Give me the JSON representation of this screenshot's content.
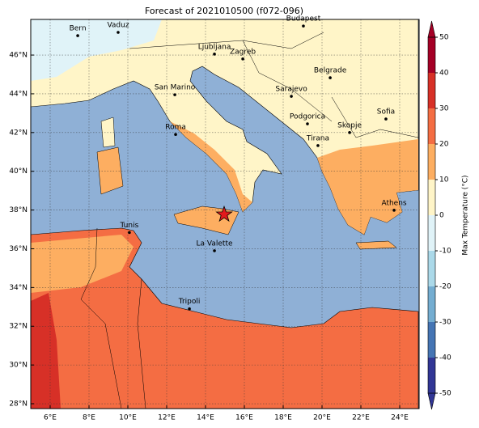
{
  "title": "Forecast of 2021010500 (f072-096)",
  "map": {
    "xlim": [
      5,
      25
    ],
    "ylim": [
      27.75,
      47.84
    ],
    "lon_ticks": [
      {
        "value": 6,
        "label": "6°E"
      },
      {
        "value": 8,
        "label": "8°E"
      },
      {
        "value": 10,
        "label": "10°E"
      },
      {
        "value": 12,
        "label": "12°E"
      },
      {
        "value": 14,
        "label": "14°E"
      },
      {
        "value": 16,
        "label": "16°E"
      },
      {
        "value": 18,
        "label": "18°E"
      },
      {
        "value": 20,
        "label": "20°E"
      },
      {
        "value": 22,
        "label": "22°E"
      },
      {
        "value": 24,
        "label": "24°E"
      }
    ],
    "lat_ticks": [
      {
        "value": 28,
        "label": "28°N"
      },
      {
        "value": 30,
        "label": "30°N"
      },
      {
        "value": 32,
        "label": "32°N"
      },
      {
        "value": 34,
        "label": "34°N"
      },
      {
        "value": 36,
        "label": "36°N"
      },
      {
        "value": 38,
        "label": "38°N"
      },
      {
        "value": 40,
        "label": "40°N"
      },
      {
        "value": 42,
        "label": "42°N"
      },
      {
        "value": 44,
        "label": "44°N"
      },
      {
        "value": 46,
        "label": "46°N"
      }
    ],
    "cities": [
      {
        "name": "Bern",
        "lon": 7.42,
        "lat": 47.0
      },
      {
        "name": "Vaduz",
        "lon": 9.5,
        "lat": 47.17
      },
      {
        "name": "Budapest",
        "lon": 19.04,
        "lat": 47.5
      },
      {
        "name": "Ljubljana",
        "lon": 14.46,
        "lat": 46.05
      },
      {
        "name": "Zagreb",
        "lon": 15.92,
        "lat": 45.8
      },
      {
        "name": "San Marino",
        "lon": 12.42,
        "lat": 43.95
      },
      {
        "name": "Belgrade",
        "lon": 20.42,
        "lat": 44.83
      },
      {
        "name": "Sarajevo",
        "lon": 18.42,
        "lat": 43.87
      },
      {
        "name": "Sofia",
        "lon": 23.29,
        "lat": 42.7
      },
      {
        "name": "Podgorica",
        "lon": 19.25,
        "lat": 42.45
      },
      {
        "name": "Skopje",
        "lon": 21.42,
        "lat": 42.0
      },
      {
        "name": "Roma",
        "lon": 12.46,
        "lat": 41.9
      },
      {
        "name": "Tirana",
        "lon": 19.79,
        "lat": 41.33
      },
      {
        "name": "Athens",
        "lon": 23.71,
        "lat": 37.99
      },
      {
        "name": "Tunis",
        "lon": 10.08,
        "lat": 36.84
      },
      {
        "name": "La Valette",
        "lon": 14.46,
        "lat": 35.9
      },
      {
        "name": "Tripoli",
        "lon": 13.17,
        "lat": 32.9
      }
    ],
    "star": {
      "lon": 14.96,
      "lat": 37.77,
      "color": "#e31a1c"
    }
  },
  "colorbar": {
    "label": "Max Temperature (°C)",
    "ticks": [
      50,
      40,
      30,
      20,
      10,
      0,
      -10,
      -20,
      -30,
      -40,
      -50
    ],
    "colors": [
      "#a50026",
      "#d73027",
      "#f46d43",
      "#fdae61",
      "#fff5c8",
      "#e0f3f8",
      "#abd9e9",
      "#74add1",
      "#4575b4",
      "#313695"
    ]
  }
}
